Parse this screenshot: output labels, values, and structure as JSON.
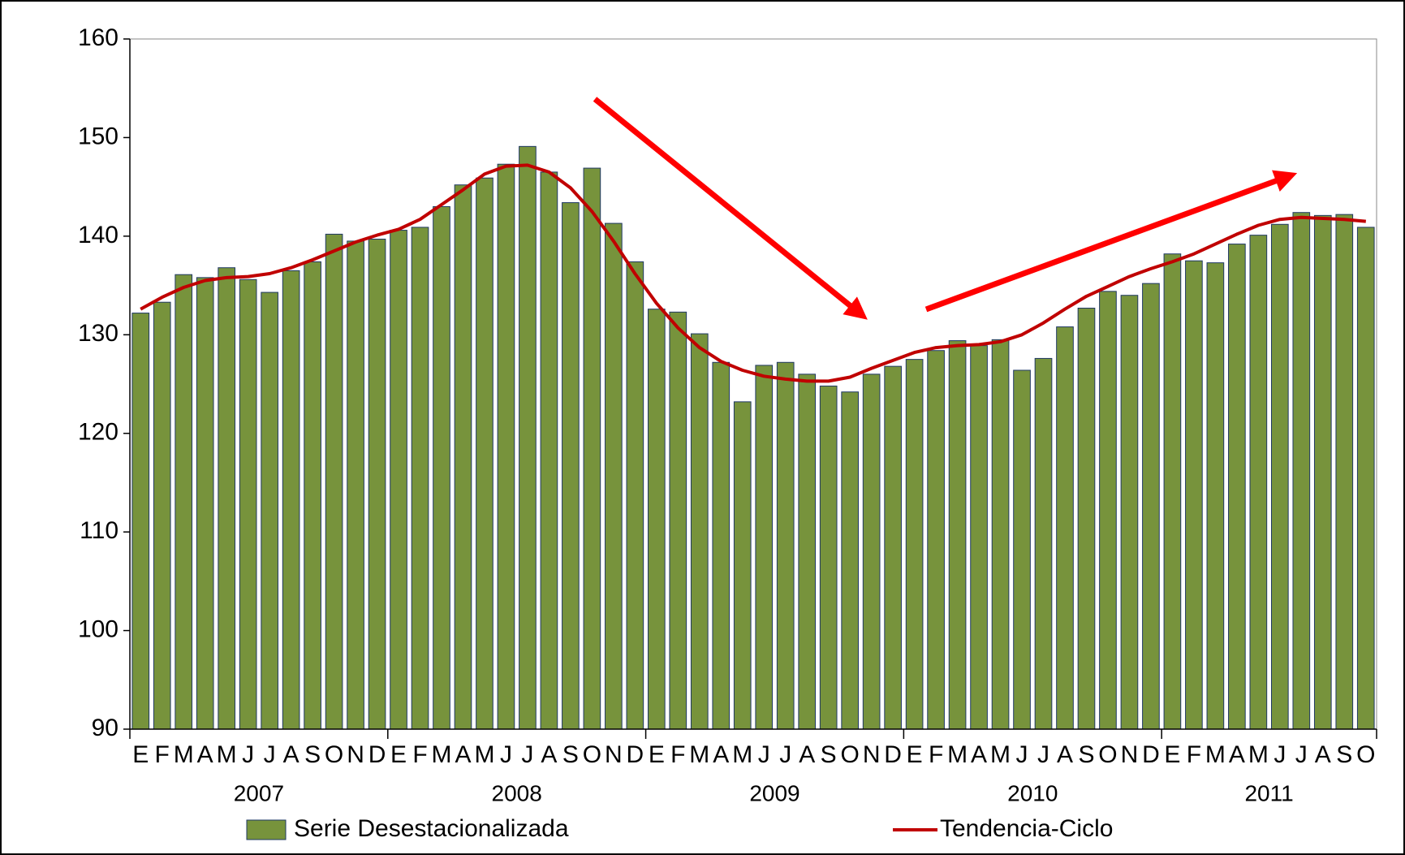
{
  "chart_data": {
    "type": "bar",
    "categories": [
      "E",
      "F",
      "M",
      "A",
      "M",
      "J",
      "J",
      "A",
      "S",
      "O",
      "N",
      "D",
      "E",
      "F",
      "M",
      "A",
      "M",
      "J",
      "J",
      "A",
      "S",
      "O",
      "N",
      "D",
      "E",
      "F",
      "M",
      "A",
      "M",
      "J",
      "J",
      "A",
      "S",
      "O",
      "N",
      "D",
      "E",
      "F",
      "M",
      "A",
      "M",
      "J",
      "J",
      "A",
      "S",
      "O",
      "N",
      "D",
      "E",
      "F",
      "M",
      "A",
      "M",
      "J",
      "J",
      "A",
      "S",
      "O"
    ],
    "groups": [
      "2007",
      "2008",
      "2009",
      "2010",
      "2011"
    ],
    "series": [
      {
        "name": "Serie Desestacionalizada",
        "type": "bar",
        "color": "#77933c",
        "values": [
          132.2,
          133.3,
          136.1,
          135.8,
          136.8,
          135.6,
          134.3,
          136.5,
          137.4,
          140.2,
          139.5,
          139.7,
          140.6,
          140.9,
          143.0,
          145.2,
          145.9,
          147.3,
          149.1,
          146.5,
          143.4,
          146.9,
          141.3,
          137.4,
          132.6,
          132.3,
          130.1,
          127.2,
          123.2,
          126.9,
          127.2,
          126.0,
          124.8,
          124.2,
          126.0,
          126.8,
          127.5,
          128.4,
          129.4,
          128.9,
          129.5,
          126.4,
          127.6,
          130.8,
          132.7,
          134.4,
          134.0,
          135.2,
          138.2,
          137.5,
          137.3,
          139.2,
          140.1,
          141.2,
          142.4,
          142.1,
          142.2,
          140.9
        ]
      },
      {
        "name": "Tendencia-Ciclo",
        "type": "line",
        "color": "#c00000",
        "values": [
          132.6,
          133.8,
          134.8,
          135.5,
          135.8,
          135.9,
          136.2,
          136.8,
          137.6,
          138.5,
          139.4,
          140.1,
          140.7,
          141.7,
          143.2,
          144.7,
          146.3,
          147.1,
          147.2,
          146.5,
          144.9,
          142.5,
          139.5,
          136.2,
          133.2,
          130.7,
          128.7,
          127.3,
          126.4,
          125.8,
          125.5,
          125.3,
          125.3,
          125.7,
          126.6,
          127.4,
          128.2,
          128.7,
          128.9,
          129.0,
          129.3,
          130.0,
          131.2,
          132.6,
          133.9,
          134.9,
          135.9,
          136.7,
          137.4,
          138.2,
          139.2,
          140.2,
          141.1,
          141.7,
          141.9,
          141.8,
          141.7,
          141.5
        ]
      }
    ],
    "ylim": [
      90,
      160
    ],
    "yticks": [
      90,
      100,
      110,
      120,
      130,
      140,
      150,
      160
    ],
    "grid": false,
    "legend": "bottom"
  }
}
